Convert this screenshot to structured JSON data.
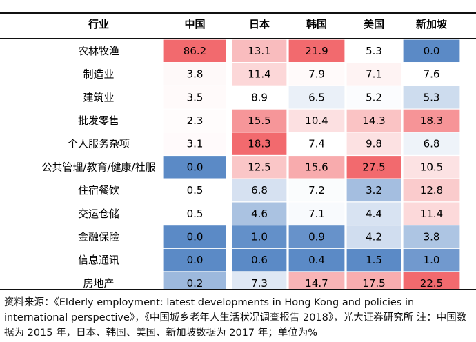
{
  "chart_data": {
    "type": "heatmap",
    "row_header": "行业",
    "columns": [
      "中国",
      "日本",
      "韩国",
      "美国",
      "新加坡"
    ],
    "rows": [
      {
        "label": "农林牧渔",
        "values": [
          86.2,
          13.1,
          21.9,
          5.3,
          0.0
        ]
      },
      {
        "label": "制造业",
        "values": [
          3.8,
          11.4,
          7.9,
          7.1,
          7.6
        ]
      },
      {
        "label": "建筑业",
        "values": [
          3.5,
          8.9,
          6.5,
          5.2,
          5.3
        ]
      },
      {
        "label": "批发零售",
        "values": [
          2.3,
          15.5,
          10.4,
          14.3,
          18.3
        ]
      },
      {
        "label": "个人服务杂项",
        "values": [
          3.1,
          18.3,
          7.4,
          9.8,
          6.8
        ]
      },
      {
        "label": "公共管理/教育/健康/社服",
        "values": [
          0.0,
          12.5,
          15.6,
          27.5,
          10.5
        ]
      },
      {
        "label": "住宿餐饮",
        "values": [
          0.5,
          6.8,
          7.2,
          3.2,
          12.8
        ]
      },
      {
        "label": "交运仓储",
        "values": [
          0.5,
          4.6,
          7.1,
          4.4,
          11.4
        ]
      },
      {
        "label": "金融保险",
        "values": [
          0.0,
          1.0,
          0.9,
          4.2,
          3.8
        ]
      },
      {
        "label": "信息通讯",
        "values": [
          0.0,
          0.6,
          0.4,
          1.5,
          1.0
        ]
      },
      {
        "label": "房地产",
        "values": [
          0.2,
          7.3,
          14.7,
          17.5,
          22.5
        ]
      }
    ],
    "colors": {
      "low": "#5b8ac6",
      "mid": "#ffffff",
      "high": "#f26a6e"
    },
    "color_scale": "per-column"
  },
  "source_text": "资料来源：《Elderly employment: latest developments in Hong Kong and policies in international perspective》，《中国城乡老年人生活状况调查报告 2018》，光大证券研究所  注：中国数据为 2015 年，日本、韩国、美国、新加坡数据为 2017 年；单位为%"
}
